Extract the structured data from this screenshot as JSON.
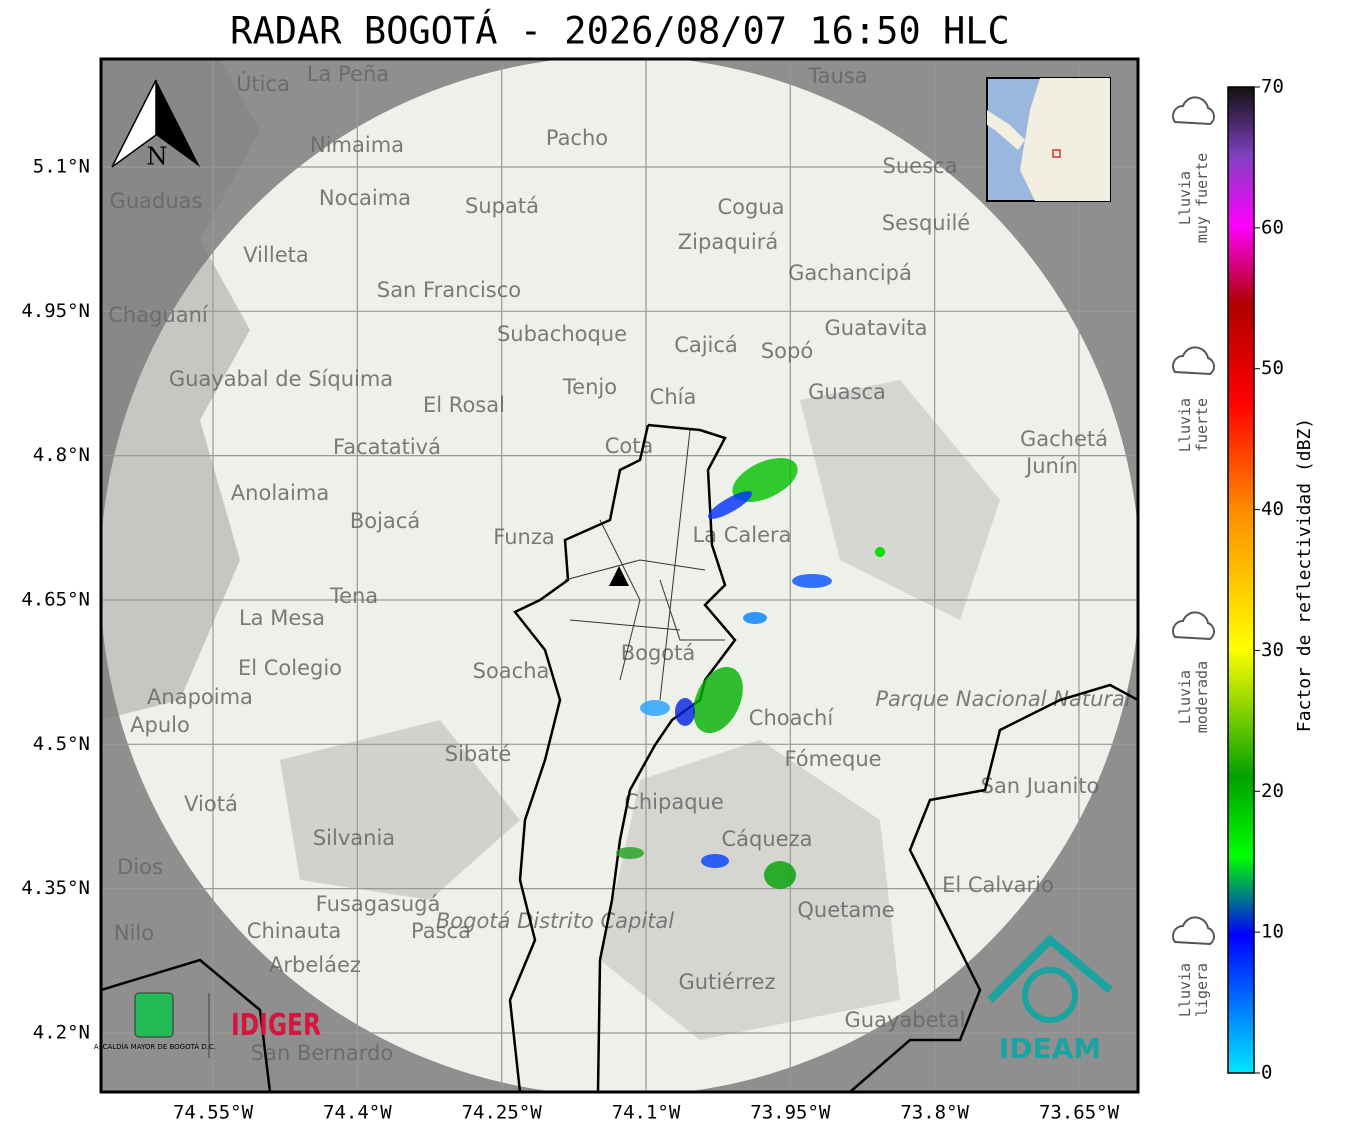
{
  "title": "RADAR BOGOTÁ - 2026/08/07 16:50 HLC",
  "map": {
    "lat_ticks": [
      {
        "value": 5.1,
        "label": "5.1°N"
      },
      {
        "value": 4.95,
        "label": "4.95°N"
      },
      {
        "value": 4.8,
        "label": "4.8°N"
      },
      {
        "value": 4.65,
        "label": "4.65°N"
      },
      {
        "value": 4.5,
        "label": "4.5°N"
      },
      {
        "value": 4.35,
        "label": "4.35°N"
      },
      {
        "value": 4.2,
        "label": "4.2°N"
      }
    ],
    "lon_ticks": [
      {
        "value": -74.55,
        "label": "74.55°W"
      },
      {
        "value": -74.4,
        "label": "74.4°W"
      },
      {
        "value": -74.25,
        "label": "74.25°W"
      },
      {
        "value": -74.1,
        "label": "74.1°W"
      },
      {
        "value": -73.95,
        "label": "73.95°W"
      },
      {
        "value": -73.8,
        "label": "73.8°W"
      },
      {
        "value": -73.65,
        "label": "73.65°W"
      }
    ],
    "north": "N",
    "places": [
      "La Peña",
      "Útica",
      "Tausa",
      "Pacho",
      "Nimaima",
      "Guaduas",
      "Nocaima",
      "Supatá",
      "Suesca",
      "Cogua",
      "Sesquilé",
      "Zipaquirá",
      "Villeta",
      "San Francisco",
      "Gachancipá",
      "Chaguaní",
      "Guatavita",
      "Subachoque",
      "Cajicá",
      "Sopó",
      "Guayabal de Síquima",
      "Tenjo",
      "Chía",
      "Guasca",
      "El Rosal",
      "Facatativá",
      "Cota",
      "Gachetá",
      "Junín",
      "Anolaima",
      "Bojacá",
      "Funza",
      "La Calera",
      "Tena",
      "La Mesa",
      "Bogotá",
      "Soacha",
      "El Colegio",
      "Anapoima",
      "Apulo",
      "Choachí",
      "Parque Nacional Natural Chingaza",
      "Sibaté",
      "Fómeque",
      "San Juanito",
      "Chipaque",
      "Viotá",
      "Silvania",
      "Cáqueza",
      "Dios",
      "El Calvario",
      "Fusagasugá",
      "Bogotá Distrito Capital",
      "Quetame",
      "Chinauta",
      "Pasca",
      "Nilo",
      "Arbeláez",
      "Gutiérrez",
      "Guayabetal",
      "San Bernardo"
    ]
  },
  "logos": {
    "alcaldia": "ALCALDÍA MAYOR DE BOGOTÁ D.C.",
    "idiger": "IDIGER",
    "ideam": "IDEAM"
  },
  "colorbar": {
    "label": "Factor de reflectividad (dBZ)",
    "lim": [
      0,
      70
    ],
    "ticks": [
      0,
      10,
      20,
      30,
      40,
      50,
      60,
      70
    ]
  },
  "rain_legend": [
    [
      "Lluvia",
      "muy fuerte"
    ],
    [
      "Lluvia",
      "fuerte"
    ],
    [
      "Lluvia",
      "moderada"
    ],
    [
      "Lluvia",
      "ligera"
    ]
  ]
}
